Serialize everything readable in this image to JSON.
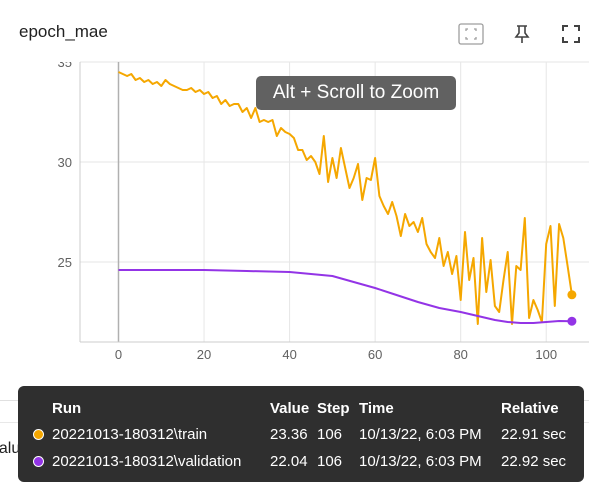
{
  "card": {
    "title": "epoch_mae",
    "icons": [
      "fit-domain-icon",
      "pin-icon",
      "fullscreen-icon"
    ]
  },
  "zoom_hint": "Alt + Scroll to Zoom",
  "background_label": "evaluation_loss_vs_iterations",
  "colors": {
    "train": "#f5a700",
    "validation": "#9334e6",
    "tooltip_bg": "#2f2f2f",
    "hint_bg": "#616161"
  },
  "chart_data": {
    "type": "line",
    "title": "epoch_mae",
    "xlabel": "",
    "ylabel": "",
    "xlim": [
      -9,
      110
    ],
    "ylim": [
      21,
      35
    ],
    "x_ticks": [
      0,
      20,
      40,
      60,
      80,
      100
    ],
    "y_ticks": [
      25,
      30,
      35
    ],
    "y_tick_labels": [
      "25",
      "30",
      "35"
    ],
    "grid": true,
    "series": [
      {
        "name": "20221013-180312\\train",
        "color": "#f5a700",
        "x": [
          0,
          1,
          2,
          3,
          4,
          5,
          6,
          7,
          8,
          9,
          10,
          11,
          12,
          13,
          14,
          15,
          16,
          17,
          18,
          19,
          20,
          21,
          22,
          23,
          24,
          25,
          26,
          27,
          28,
          29,
          30,
          31,
          32,
          33,
          34,
          35,
          36,
          37,
          38,
          39,
          40,
          41,
          42,
          43,
          44,
          45,
          46,
          47,
          48,
          49,
          50,
          51,
          52,
          53,
          54,
          55,
          56,
          57,
          58,
          59,
          60,
          61,
          62,
          63,
          64,
          65,
          66,
          67,
          68,
          69,
          70,
          71,
          72,
          73,
          74,
          75,
          76,
          77,
          78,
          79,
          80,
          81,
          82,
          83,
          84,
          85,
          86,
          87,
          88,
          89,
          90,
          91,
          92,
          93,
          94,
          95,
          96,
          97,
          98,
          99,
          100,
          101,
          102,
          103,
          104,
          105,
          106
        ],
        "y": [
          34.5,
          34.4,
          34.3,
          34.4,
          34.1,
          34.2,
          34.0,
          34.1,
          33.9,
          34.0,
          33.8,
          34.1,
          33.9,
          33.8,
          33.7,
          33.6,
          33.6,
          33.7,
          33.5,
          33.6,
          33.4,
          33.5,
          33.2,
          33.3,
          32.9,
          33.1,
          32.8,
          32.9,
          32.9,
          32.5,
          32.7,
          32.2,
          32.7,
          32.0,
          32.1,
          32.0,
          32.1,
          31.3,
          31.7,
          31.5,
          31.4,
          31.2,
          30.6,
          30.6,
          30.1,
          30.3,
          30.0,
          29.4,
          31.3,
          29.0,
          30.2,
          29.2,
          30.7,
          29.7,
          28.7,
          29.2,
          29.9,
          28.1,
          29.2,
          29.1,
          30.2,
          28.3,
          27.8,
          27.4,
          28.0,
          27.3,
          26.3,
          27.4,
          26.8,
          27.0,
          26.5,
          27.2,
          25.9,
          25.5,
          25.2,
          26.2,
          24.8,
          25.5,
          24.4,
          25.3,
          23.1,
          26.5,
          24.1,
          25.2,
          21.9,
          26.2,
          23.5,
          25.1,
          22.8,
          22.5,
          24.1,
          25.5,
          21.9,
          24.8,
          24.6,
          27.2,
          22.2,
          23.1,
          22.6,
          22.0,
          25.9,
          26.8,
          22.8,
          26.9,
          26.2,
          24.8,
          23.36
        ]
      },
      {
        "name": "20221013-180312\\validation",
        "color": "#9334e6",
        "x": [
          0,
          10,
          20,
          30,
          40,
          50,
          55,
          60,
          65,
          70,
          75,
          80,
          85,
          88,
          91,
          94,
          97,
          100,
          103,
          106
        ],
        "y": [
          24.6,
          24.6,
          24.6,
          24.55,
          24.5,
          24.3,
          24.0,
          23.7,
          23.35,
          23.0,
          22.7,
          22.5,
          22.25,
          22.1,
          22.0,
          21.95,
          21.95,
          22.0,
          22.05,
          22.04
        ]
      }
    ]
  },
  "table": {
    "headers": [
      "Run",
      "Value",
      "Step",
      "Time",
      "Relative"
    ],
    "rows": [
      {
        "run": "20221013-180312\\train",
        "value": "23.36",
        "step": "106",
        "time": "10/13/22, 6:03 PM",
        "relative": "22.91 sec",
        "color": "#f5a700"
      },
      {
        "run": "20221013-180312\\validation",
        "value": "22.04",
        "step": "106",
        "time": "10/13/22, 6:03 PM",
        "relative": "22.92 sec",
        "color": "#9334e6"
      }
    ]
  }
}
